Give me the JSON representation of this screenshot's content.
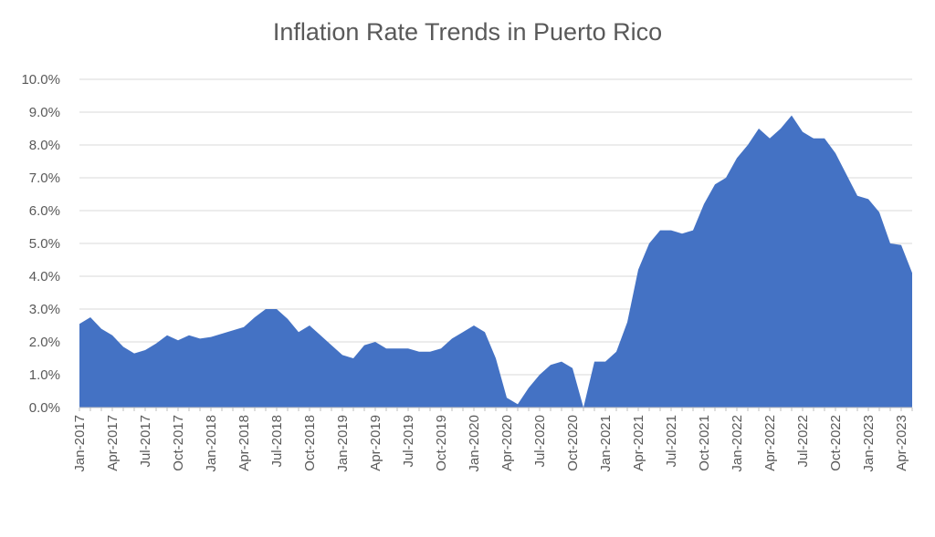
{
  "chart_data": {
    "type": "area",
    "title": "Inflation Rate Trends in Puerto Rico",
    "xlabel": "",
    "ylabel": "",
    "ylim": [
      0,
      10
    ],
    "y_tick_labels": [
      "0.0%",
      "1.0%",
      "2.0%",
      "3.0%",
      "4.0%",
      "5.0%",
      "6.0%",
      "7.0%",
      "8.0%",
      "9.0%",
      "10.0%"
    ],
    "grid": true,
    "legend": "none",
    "colors": {
      "area": "#4472c4"
    },
    "x_tick_labels": [
      "Jan-2017",
      "Apr-2017",
      "Jul-2017",
      "Oct-2017",
      "Jan-2018",
      "Apr-2018",
      "Jul-2018",
      "Oct-2018",
      "Jan-2019",
      "Apr-2019",
      "Jul-2019",
      "Oct-2019",
      "Jan-2020",
      "Apr-2020",
      "Jul-2020",
      "Oct-2020",
      "Jan-2021",
      "Apr-2021",
      "Jul-2021",
      "Oct-2021",
      "Jan-2022",
      "Apr-2022",
      "Jul-2022",
      "Oct-2022",
      "Jan-2023",
      "Apr-2023"
    ],
    "x": [
      "Jan-2017",
      "Feb-2017",
      "Mar-2017",
      "Apr-2017",
      "May-2017",
      "Jun-2017",
      "Jul-2017",
      "Aug-2017",
      "Sep-2017",
      "Oct-2017",
      "Nov-2017",
      "Dec-2017",
      "Jan-2018",
      "Feb-2018",
      "Mar-2018",
      "Apr-2018",
      "May-2018",
      "Jun-2018",
      "Jul-2018",
      "Aug-2018",
      "Sep-2018",
      "Oct-2018",
      "Nov-2018",
      "Dec-2018",
      "Jan-2019",
      "Feb-2019",
      "Mar-2019",
      "Apr-2019",
      "May-2019",
      "Jun-2019",
      "Jul-2019",
      "Aug-2019",
      "Sep-2019",
      "Oct-2019",
      "Nov-2019",
      "Dec-2019",
      "Jan-2020",
      "Feb-2020",
      "Mar-2020",
      "Apr-2020",
      "May-2020",
      "Jun-2020",
      "Jul-2020",
      "Aug-2020",
      "Sep-2020",
      "Oct-2020",
      "Nov-2020",
      "Dec-2020",
      "Jan-2021",
      "Feb-2021",
      "Mar-2021",
      "Apr-2021",
      "May-2021",
      "Jun-2021",
      "Jul-2021",
      "Aug-2021",
      "Sep-2021",
      "Oct-2021",
      "Nov-2021",
      "Dec-2021",
      "Jan-2022",
      "Feb-2022",
      "Mar-2022",
      "Apr-2022",
      "May-2022",
      "Jun-2022",
      "Jul-2022",
      "Aug-2022",
      "Sep-2022",
      "Oct-2022",
      "Nov-2022",
      "Dec-2022",
      "Jan-2023",
      "Feb-2023",
      "Mar-2023",
      "Apr-2023",
      "May-2023"
    ],
    "values": [
      2.55,
      2.75,
      2.4,
      2.2,
      1.85,
      1.65,
      1.75,
      1.95,
      2.2,
      2.05,
      2.2,
      2.1,
      2.15,
      2.25,
      2.35,
      2.45,
      2.75,
      3.0,
      3.0,
      2.7,
      2.3,
      2.5,
      2.2,
      1.9,
      1.6,
      1.5,
      1.9,
      2.0,
      1.8,
      1.8,
      1.8,
      1.7,
      1.7,
      1.8,
      2.1,
      2.3,
      2.5,
      2.3,
      1.5,
      0.3,
      0.1,
      0.6,
      1.0,
      1.3,
      1.4,
      1.2,
      0.0,
      1.4,
      1.4,
      1.7,
      2.6,
      4.2,
      5.0,
      5.4,
      5.4,
      5.3,
      5.4,
      6.2,
      6.8,
      7.0,
      7.6,
      8.0,
      8.5,
      8.2,
      8.5,
      8.9,
      8.4,
      8.2,
      8.2,
      7.75,
      7.1,
      6.45,
      6.35,
      5.95,
      5.0,
      4.95,
      4.1
    ]
  }
}
